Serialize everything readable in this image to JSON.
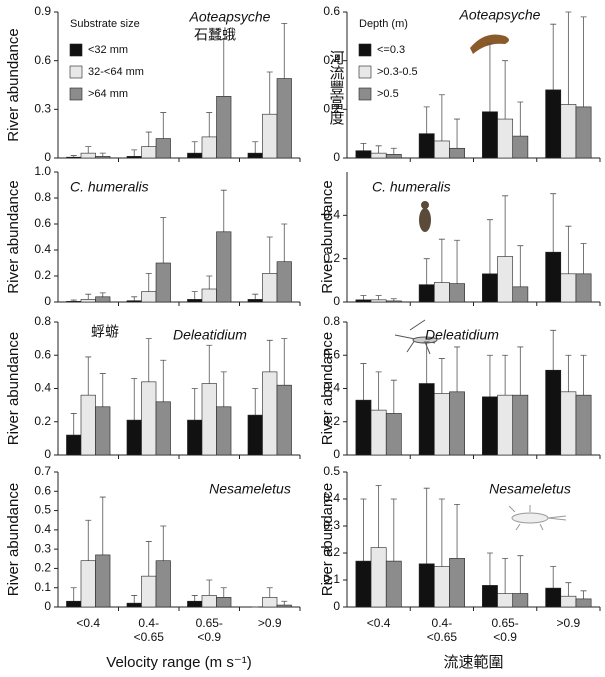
{
  "chart_data": [
    {
      "type": "bar",
      "title": "Aoteapsyche",
      "ylabel": "River abundance",
      "annotation": "石蠶蛾",
      "legend_title": "Substrate size",
      "categories": [
        null,
        null,
        null,
        null
      ],
      "ylim": [
        0,
        0.9
      ],
      "yticks": [
        0,
        0.3,
        0.6,
        0.9
      ],
      "series": [
        {
          "name": "<32 mm",
          "color": "#111111",
          "values": [
            0.005,
            0.01,
            0.03,
            0.03
          ],
          "errors": [
            0.01,
            0.04,
            0.07,
            0.07
          ]
        },
        {
          "name": "32-<64 mm",
          "color": "#e8e8e8",
          "values": [
            0.03,
            0.07,
            0.13,
            0.27
          ],
          "errors": [
            0.04,
            0.09,
            0.15,
            0.26
          ]
        },
        {
          "name": ">64 mm",
          "color": "#8c8c8c",
          "values": [
            0.01,
            0.12,
            0.38,
            0.49
          ],
          "errors": [
            0.02,
            0.16,
            0.35,
            0.34
          ]
        }
      ]
    },
    {
      "type": "bar",
      "title": "C. humeralis",
      "ylabel": "River abundance",
      "categories": [
        null,
        null,
        null,
        null
      ],
      "ylim": [
        0,
        1.0
      ],
      "yticks": [
        0,
        0.2,
        0.4,
        0.6,
        0.8,
        {
          "value": 1,
          "label": "1.0"
        }
      ],
      "series": [
        {
          "color": "#111111",
          "values": [
            0.005,
            0.01,
            0.02,
            0.02
          ],
          "errors": [
            0.01,
            0.03,
            0.06,
            0.04
          ]
        },
        {
          "color": "#e8e8e8",
          "values": [
            0.02,
            0.08,
            0.1,
            0.22
          ],
          "errors": [
            0.04,
            0.14,
            0.1,
            0.28
          ]
        },
        {
          "color": "#8c8c8c",
          "values": [
            0.04,
            0.3,
            0.54,
            0.31
          ],
          "errors": [
            0.03,
            0.35,
            0.32,
            0.29
          ]
        }
      ]
    },
    {
      "type": "bar",
      "title": "Deleatidium",
      "ylabel": "River abundance",
      "annotation": "蜉蝣",
      "categories": [
        null,
        null,
        null,
        null
      ],
      "ylim": [
        0,
        0.8
      ],
      "yticks": [
        0,
        0.2,
        0.4,
        0.6,
        0.8
      ],
      "series": [
        {
          "color": "#111111",
          "values": [
            0.12,
            0.21,
            0.21,
            0.24
          ],
          "errors": [
            0.13,
            0.25,
            0.19,
            0.16
          ]
        },
        {
          "color": "#e8e8e8",
          "values": [
            0.36,
            0.44,
            0.43,
            0.5
          ],
          "errors": [
            0.23,
            0.26,
            0.23,
            0.19
          ]
        },
        {
          "color": "#8c8c8c",
          "values": [
            0.29,
            0.32,
            0.29,
            0.42
          ],
          "errors": [
            0.2,
            0.25,
            0.21,
            0.28
          ]
        }
      ]
    },
    {
      "type": "bar",
      "title": "Nesameletus",
      "ylabel": "River abundance",
      "xlabel": "Velocity range (m s⁻¹)",
      "categories": [
        "<0.4",
        "0.4-\n<0.65",
        "0.65-\n<0.9",
        ">0.9"
      ],
      "ylim": [
        0,
        0.7
      ],
      "yticks": [
        0,
        0.1,
        0.2,
        0.3,
        0.4,
        0.5,
        0.6,
        0.7
      ],
      "series": [
        {
          "color": "#111111",
          "values": [
            0.03,
            0.02,
            0.03,
            0
          ],
          "errors": [
            0.07,
            0.04,
            0.03,
            0
          ]
        },
        {
          "color": "#e8e8e8",
          "values": [
            0.24,
            0.16,
            0.06,
            0.05
          ],
          "errors": [
            0.21,
            0.18,
            0.08,
            0.05
          ]
        },
        {
          "color": "#8c8c8c",
          "values": [
            0.27,
            0.24,
            0.05,
            0.01
          ],
          "errors": [
            0.3,
            0.18,
            0.05,
            0.02
          ]
        }
      ]
    },
    {
      "type": "bar",
      "title": "Aoteapsyche",
      "ylabel": "河流豐富度",
      "legend_title": "Depth (m)",
      "categories": [
        null,
        null,
        null,
        null
      ],
      "ylim": [
        0,
        0.6
      ],
      "yticks": [
        0,
        0.2,
        0.4,
        0.6
      ],
      "series": [
        {
          "name": "<=0.3",
          "color": "#111111",
          "values": [
            0.03,
            0.1,
            0.19,
            0.28
          ],
          "errors": [
            0.03,
            0.11,
            0.28,
            0.27
          ]
        },
        {
          "name": ">0.3-0.5",
          "color": "#e8e8e8",
          "values": [
            0.02,
            0.07,
            0.16,
            0.22
          ],
          "errors": [
            0.03,
            0.19,
            0.24,
            0.38
          ]
        },
        {
          "name": ">0.5",
          "color": "#8c8c8c",
          "values": [
            0.015,
            0.04,
            0.09,
            0.21
          ],
          "errors": [
            0.025,
            0.12,
            0.14,
            0.37
          ]
        }
      ]
    },
    {
      "type": "bar",
      "title": "C. humeralis",
      "ylabel": "River abundance",
      "categories": [
        null,
        null,
        null,
        null
      ],
      "ylim": [
        0,
        0.6
      ],
      "yticks": [
        0,
        0.2,
        0.4
      ],
      "series": [
        {
          "color": "#111111",
          "values": [
            0.01,
            0.08,
            0.13,
            0.23
          ],
          "errors": [
            0.02,
            0.12,
            0.25,
            0.27
          ]
        },
        {
          "color": "#e8e8e8",
          "values": [
            0.01,
            0.09,
            0.21,
            0.13
          ],
          "errors": [
            0.02,
            0.2,
            0.28,
            0.22
          ]
        },
        {
          "color": "#8c8c8c",
          "values": [
            0.005,
            0.085,
            0.07,
            0.13
          ],
          "errors": [
            0.01,
            0.2,
            0.19,
            0.14
          ]
        }
      ]
    },
    {
      "type": "bar",
      "title": "Deleatidium",
      "ylabel": "River abundance",
      "categories": [
        null,
        null,
        null,
        null
      ],
      "ylim": [
        0,
        0.8
      ],
      "yticks": [
        0,
        0.2,
        0.4,
        0.6,
        0.8
      ],
      "series": [
        {
          "color": "#111111",
          "values": [
            0.33,
            0.43,
            0.35,
            0.51
          ],
          "errors": [
            0.22,
            0.25,
            0.25,
            0.24
          ]
        },
        {
          "color": "#e8e8e8",
          "values": [
            0.27,
            0.37,
            0.36,
            0.38
          ],
          "errors": [
            0.23,
            0.21,
            0.24,
            0.22
          ]
        },
        {
          "color": "#8c8c8c",
          "values": [
            0.25,
            0.38,
            0.36,
            0.36
          ],
          "errors": [
            0.2,
            0.27,
            0.29,
            0.24
          ]
        }
      ]
    },
    {
      "type": "bar",
      "title": "Nesameletus",
      "ylabel": "River abundance",
      "xlabel": "流速範圍",
      "categories": [
        "<0.4",
        "0.4-\n<0.65",
        "0.65-\n<0.9",
        ">0.9"
      ],
      "ylim": [
        0,
        0.5
      ],
      "yticks": [
        0,
        0.1,
        0.2,
        0.3,
        0.4,
        0.5
      ],
      "series": [
        {
          "color": "#111111",
          "values": [
            0.17,
            0.16,
            0.08,
            0.07
          ],
          "errors": [
            0.23,
            0.28,
            0.12,
            0.08
          ]
        },
        {
          "color": "#e8e8e8",
          "values": [
            0.22,
            0.15,
            0.05,
            0.04
          ],
          "errors": [
            0.23,
            0.25,
            0.13,
            0.05
          ]
        },
        {
          "color": "#8c8c8c",
          "values": [
            0.17,
            0.18,
            0.05,
            0.03
          ],
          "errors": [
            0.23,
            0.2,
            0.14,
            0.03
          ]
        }
      ]
    }
  ]
}
